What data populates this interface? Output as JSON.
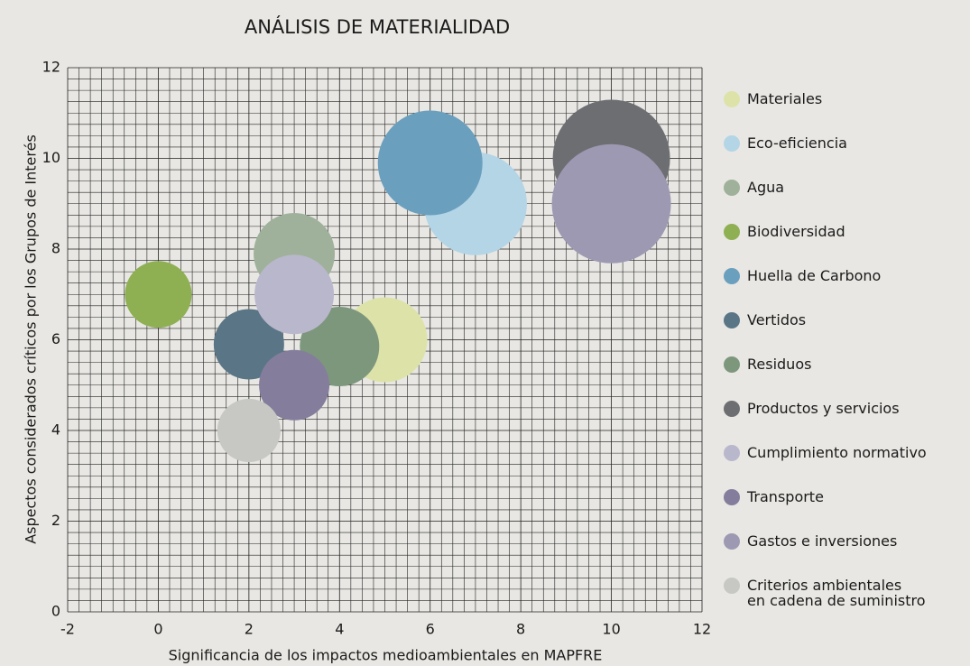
{
  "chart_data": {
    "type": "bubble",
    "title": "ANÁLISIS DE MATERIALIDAD",
    "xlabel": "Significancia de los impactos medioambientales en MAPFRE",
    "ylabel": "Aspectos considerados críticos por los Grupos de Interés",
    "xlim": [
      -2,
      12
    ],
    "xticks": [
      -2,
      0,
      2,
      4,
      6,
      8,
      10,
      12
    ],
    "ylim": [
      0,
      12
    ],
    "yticks": [
      0,
      2,
      4,
      6,
      8,
      10,
      12
    ],
    "grid": true,
    "legend": "right",
    "series": [
      {
        "name": "Materiales",
        "color": "#dde3a8",
        "x": 5,
        "y": 6,
        "size": 47
      },
      {
        "name": "Eco-eficiencia",
        "color": "#b3d5e6",
        "x": 7,
        "y": 9,
        "size": 57
      },
      {
        "name": "Agua",
        "color": "#9fb19a",
        "x": 3,
        "y": 7.9,
        "size": 45
      },
      {
        "name": "Biodiversidad",
        "color": "#8fb052",
        "x": 0,
        "y": 7,
        "size": 37
      },
      {
        "name": "Huella de Carbono",
        "color": "#6b9fbe",
        "x": 6,
        "y": 9.9,
        "size": 58
      },
      {
        "name": "Vertidos",
        "color": "#5a7585",
        "x": 2,
        "y": 5.9,
        "size": 39
      },
      {
        "name": "Residuos",
        "color": "#7d977d",
        "x": 4,
        "y": 5.85,
        "size": 44
      },
      {
        "name": "Productos y servicios",
        "color": "#6d6e72",
        "x": 10,
        "y": 10,
        "size": 65
      },
      {
        "name": "Cumplimiento normativo",
        "color": "#b9b7cc",
        "x": 3,
        "y": 7,
        "size": 44
      },
      {
        "name": "Transporte",
        "color": "#847e9c",
        "x": 3,
        "y": 5,
        "size": 39
      },
      {
        "name": "Gastos e inversiones",
        "color": "#9d99b2",
        "x": 10,
        "y": 9,
        "size": 66
      },
      {
        "name": "Criterios ambientales\nen cadena de suministro",
        "color": "#c7c8c3",
        "x": 2,
        "y": 4,
        "size": 35
      }
    ]
  }
}
